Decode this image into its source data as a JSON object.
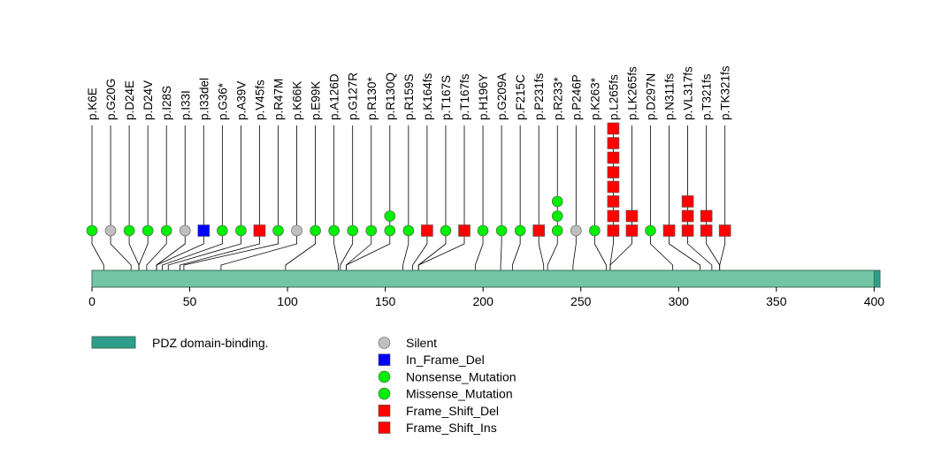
{
  "chart_data": {
    "type": "lollipop",
    "title": "",
    "xlabel": "",
    "ylabel": "",
    "xlim": [
      0,
      403
    ],
    "x_ticks": [
      0,
      50,
      100,
      150,
      200,
      250,
      300,
      350,
      400
    ],
    "domain_band": {
      "start": 0,
      "end": 403,
      "color": "#72c4a4"
    },
    "domain_region": {
      "label": "PDZ domain-binding.",
      "start": 400,
      "end": 403,
      "color": "#2e9e8a"
    },
    "colors": {
      "Silent": "#bfbfbf",
      "In_Frame_Del": "#0000ff",
      "Nonsense_Mutation": "#00ee00",
      "Missense_Mutation": "#00ee00",
      "Frame_Shift_Del": "#ff0000",
      "Frame_Shift_Ins": "#ff0000"
    },
    "mutations": [
      {
        "label": "p.K6E",
        "pos": 6,
        "types": [
          "Missense_Mutation"
        ]
      },
      {
        "label": "p.G20G",
        "pos": 20,
        "types": [
          "Silent"
        ]
      },
      {
        "label": "p.D24E",
        "pos": 24,
        "types": [
          "Missense_Mutation"
        ]
      },
      {
        "label": "p.D24V",
        "pos": 24,
        "types": [
          "Missense_Mutation"
        ]
      },
      {
        "label": "p.I28S",
        "pos": 28,
        "types": [
          "Missense_Mutation"
        ]
      },
      {
        "label": "p.I33I",
        "pos": 33,
        "types": [
          "Silent"
        ]
      },
      {
        "label": "p.I33del",
        "pos": 33,
        "types": [
          "In_Frame_Del"
        ]
      },
      {
        "label": "p.G36*",
        "pos": 36,
        "types": [
          "Nonsense_Mutation"
        ]
      },
      {
        "label": "p.A39V",
        "pos": 39,
        "types": [
          "Missense_Mutation"
        ]
      },
      {
        "label": "p.V45fs",
        "pos": 45,
        "types": [
          "Frame_Shift_Del"
        ]
      },
      {
        "label": "p.R47M",
        "pos": 47,
        "types": [
          "Missense_Mutation"
        ]
      },
      {
        "label": "p.K66K",
        "pos": 66,
        "types": [
          "Silent"
        ]
      },
      {
        "label": "p.E99K",
        "pos": 99,
        "types": [
          "Missense_Mutation"
        ]
      },
      {
        "label": "p.A126D",
        "pos": 126,
        "types": [
          "Missense_Mutation"
        ]
      },
      {
        "label": "p.G127R",
        "pos": 127,
        "types": [
          "Missense_Mutation"
        ]
      },
      {
        "label": "p.R130*",
        "pos": 130,
        "types": [
          "Nonsense_Mutation"
        ]
      },
      {
        "label": "p.R130Q",
        "pos": 130,
        "types": [
          "Missense_Mutation",
          "Missense_Mutation"
        ]
      },
      {
        "label": "p.R159S",
        "pos": 159,
        "types": [
          "Missense_Mutation"
        ]
      },
      {
        "label": "p.K164fs",
        "pos": 164,
        "types": [
          "Frame_Shift_Del"
        ]
      },
      {
        "label": "p.T167S",
        "pos": 167,
        "types": [
          "Missense_Mutation"
        ]
      },
      {
        "label": "p.T167fs",
        "pos": 167,
        "types": [
          "Frame_Shift_Del"
        ]
      },
      {
        "label": "p.H196Y",
        "pos": 196,
        "types": [
          "Missense_Mutation"
        ]
      },
      {
        "label": "p.G209A",
        "pos": 209,
        "types": [
          "Missense_Mutation"
        ]
      },
      {
        "label": "p.F215C",
        "pos": 215,
        "types": [
          "Missense_Mutation"
        ]
      },
      {
        "label": "p.P231fs",
        "pos": 231,
        "types": [
          "Frame_Shift_Del"
        ]
      },
      {
        "label": "p.R233*",
        "pos": 233,
        "types": [
          "Nonsense_Mutation",
          "Nonsense_Mutation",
          "Nonsense_Mutation"
        ]
      },
      {
        "label": "p.P246P",
        "pos": 246,
        "types": [
          "Silent"
        ]
      },
      {
        "label": "p.K263*",
        "pos": 263,
        "types": [
          "Nonsense_Mutation"
        ]
      },
      {
        "label": "p.L265fs",
        "pos": 265,
        "types": [
          "Frame_Shift_Del",
          "Frame_Shift_Del",
          "Frame_Shift_Del",
          "Frame_Shift_Del",
          "Frame_Shift_Del",
          "Frame_Shift_Del",
          "Frame_Shift_Del",
          "Frame_Shift_Del"
        ]
      },
      {
        "label": "p.LK265fs",
        "pos": 265,
        "types": [
          "Frame_Shift_Del",
          "Frame_Shift_Del"
        ]
      },
      {
        "label": "p.D297N",
        "pos": 297,
        "types": [
          "Missense_Mutation"
        ]
      },
      {
        "label": "p.N311fs",
        "pos": 311,
        "types": [
          "Frame_Shift_Del"
        ]
      },
      {
        "label": "p.VL317fs",
        "pos": 317,
        "types": [
          "Frame_Shift_Del",
          "Frame_Shift_Del",
          "Frame_Shift_Del"
        ]
      },
      {
        "label": "p.T321fs",
        "pos": 321,
        "types": [
          "Frame_Shift_Del",
          "Frame_Shift_Del"
        ]
      },
      {
        "label": "p.TK321fs",
        "pos": 321,
        "types": [
          "Frame_Shift_Del"
        ]
      }
    ],
    "legend_domains": [
      {
        "label": "PDZ domain-binding.",
        "color": "#2e9e8a"
      }
    ],
    "legend_types": [
      {
        "label": "Silent",
        "shape": "circle",
        "color": "#bfbfbf"
      },
      {
        "label": "In_Frame_Del",
        "shape": "square",
        "color": "#0000ff"
      },
      {
        "label": "Nonsense_Mutation",
        "shape": "circle",
        "color": "#00ee00"
      },
      {
        "label": "Missense_Mutation",
        "shape": "circle",
        "color": "#00ee00"
      },
      {
        "label": "Frame_Shift_Del",
        "shape": "square",
        "color": "#ff0000"
      },
      {
        "label": "Frame_Shift_Ins",
        "shape": "square",
        "color": "#ff0000"
      }
    ]
  }
}
